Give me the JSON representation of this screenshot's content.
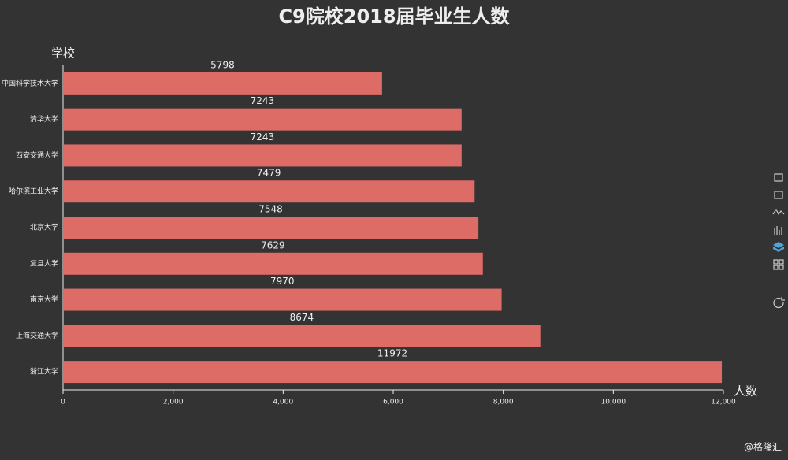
{
  "chart_data": {
    "type": "bar",
    "orientation": "horizontal",
    "title": "C9院校2018届毕业生人数",
    "y_label": "学校",
    "x_label": "人数",
    "categories": [
      "中国科学技术大学",
      "清华大学",
      "西安交通大学",
      "哈尔滨工业大学",
      "北京大学",
      "复旦大学",
      "南京大学",
      "上海交通大学",
      "浙江大学"
    ],
    "values": [
      5798,
      7243,
      7243,
      7479,
      7548,
      7629,
      7970,
      8674,
      11972
    ],
    "color": "#dd6b66",
    "xlim": [
      0,
      12000
    ],
    "xticks": [
      0,
      {
        "value": 2000,
        "label": "2,000"
      },
      {
        "value": 4000,
        "label": "4,000"
      },
      {
        "value": 6000,
        "label": "6,000"
      },
      {
        "value": 8000,
        "label": "8,000"
      },
      {
        "value": 10000,
        "label": "10,000"
      },
      {
        "value": 12000,
        "label": "12,000"
      }
    ],
    "grid": false
  },
  "watermark": "@格隆汇"
}
